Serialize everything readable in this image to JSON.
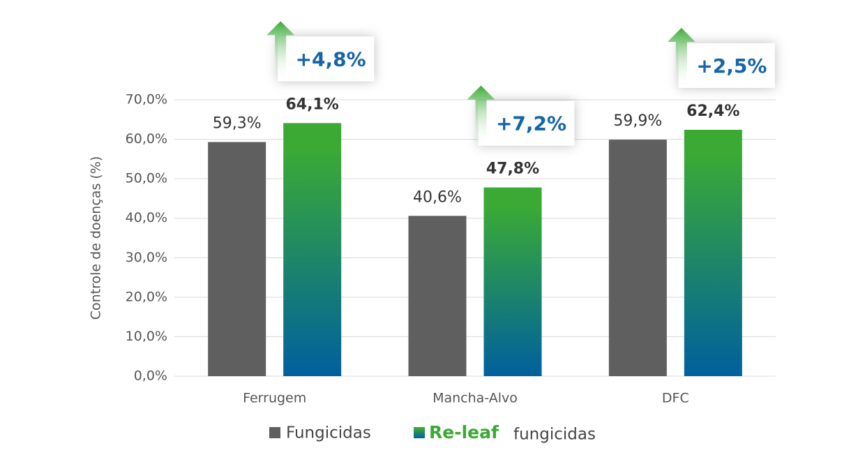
{
  "chart_data": {
    "type": "bar",
    "y_label": "Controle de doenças (%)",
    "categories": [
      "Ferrugem",
      "Mancha-Alvo",
      "DFC"
    ],
    "series": [
      {
        "name": "Fungicidas",
        "color": "#5f5f5f",
        "values": [
          59.3,
          40.6,
          59.9
        ],
        "value_labels": [
          "59,3%",
          "40,6%",
          "59,9%"
        ]
      },
      {
        "brand": "Re-leaf",
        "name": "fungicidas",
        "color": "#3aaa35",
        "color_bottom": "#00609e",
        "values": [
          64.1,
          47.8,
          62.4
        ],
        "value_labels": [
          "64,1%",
          "47,8%",
          "62,4%"
        ]
      }
    ],
    "annotations": [
      "+4,8%",
      "+7,2%",
      "+2,5%"
    ],
    "ylim": [
      0,
      70
    ],
    "yticks": [
      {
        "value": 0,
        "label": "0,0%"
      },
      {
        "value": 10,
        "label": "10,0%"
      },
      {
        "value": 20,
        "label": "20,0%"
      },
      {
        "value": 30,
        "label": "30,0%"
      },
      {
        "value": 40,
        "label": "40,0%"
      },
      {
        "value": 50,
        "label": "50,0%"
      },
      {
        "value": 60,
        "label": "60,0%"
      },
      {
        "value": 70,
        "label": "70,0%"
      }
    ],
    "grid": true
  }
}
